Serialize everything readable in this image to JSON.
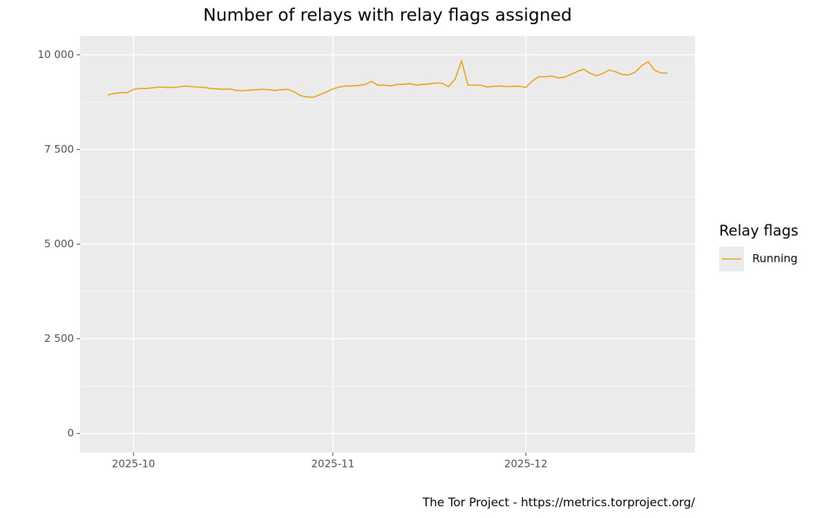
{
  "chart_data": {
    "type": "line",
    "title": "Number of relays with relay flags assigned",
    "caption": "The Tor Project - https://metrics.torproject.org/",
    "legend_title": "Relay flags",
    "legend_position": "right",
    "grid": true,
    "categories": [
      null,
      null,
      null,
      null,
      "2025-10",
      null,
      null,
      null,
      null,
      null,
      null,
      null,
      null,
      null,
      null,
      null,
      null,
      null,
      null,
      null,
      null,
      null,
      null,
      null,
      null,
      null,
      null,
      null,
      null,
      null,
      null,
      null,
      null,
      null,
      null,
      "2025-11",
      null,
      null,
      null,
      null,
      null,
      null,
      null,
      null,
      null,
      null,
      null,
      null,
      null,
      null,
      null,
      null,
      null,
      null,
      null,
      null,
      null,
      null,
      null,
      null,
      null,
      null,
      null,
      null,
      null,
      "2025-12",
      null,
      null,
      null,
      null,
      null,
      null,
      null,
      null,
      null,
      null,
      null,
      null,
      null,
      null,
      null,
      null,
      null,
      null,
      null,
      null,
      null,
      null
    ],
    "series": [
      {
        "name": "Running",
        "color": "#E69F00",
        "values": [
          8940,
          8980,
          9000,
          9000,
          9090,
          9110,
          9110,
          9130,
          9150,
          9140,
          9140,
          9150,
          9180,
          9160,
          9150,
          9140,
          9110,
          9100,
          9090,
          9100,
          9060,
          9050,
          9070,
          9080,
          9090,
          9080,
          9060,
          9080,
          9090,
          9020,
          8920,
          8890,
          8880,
          8950,
          9020,
          9100,
          9150,
          9180,
          9180,
          9190,
          9220,
          9300,
          9200,
          9200,
          9180,
          9220,
          9220,
          9240,
          9200,
          9220,
          9230,
          9260,
          9250,
          9160,
          9360,
          9840,
          9200,
          9200,
          9200,
          9150,
          9170,
          9180,
          9160,
          9170,
          9170,
          9140,
          9310,
          9420,
          9420,
          9440,
          9390,
          9410,
          9480,
          9560,
          9620,
          9510,
          9450,
          9510,
          9600,
          9550,
          9480,
          9470,
          9540,
          9710,
          9820,
          9600,
          9520,
          9520
        ]
      }
    ],
    "ylim": [
      -500,
      10500
    ],
    "yticks": [
      0,
      {
        "value": 2500,
        "label": "2 500"
      },
      {
        "value": 5000,
        "label": "5 000"
      },
      {
        "value": 7500,
        "label": "7 500"
      },
      {
        "value": 10000,
        "label": "10 000"
      }
    ]
  }
}
